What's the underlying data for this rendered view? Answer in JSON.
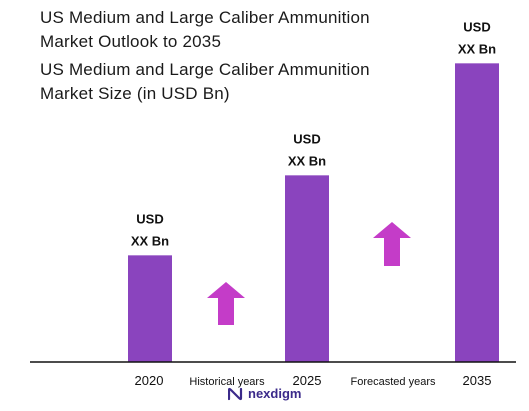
{
  "header": {
    "title_line1": "US Medium and Large Caliber Ammunition",
    "title_line2": "Market Outlook to 2035",
    "subtitle_line1": "US Medium and Large Caliber Ammunition",
    "subtitle_line2": "Market Size (in USD Bn)"
  },
  "chart_data": {
    "type": "bar",
    "categories": [
      "2020",
      "2025",
      "2035"
    ],
    "values": [
      1.0,
      1.75,
      2.8
    ],
    "value_labels": [
      [
        "USD",
        "XX Bn"
      ],
      [
        "USD",
        "XX Bn"
      ],
      [
        "USD",
        "XX Bn"
      ]
    ],
    "bar_color": "#8a44be",
    "arrow_color": "#c43cc8",
    "period_labels": [
      "Historical years",
      "Forecasted years"
    ],
    "ylim": [
      0,
      3.0
    ],
    "grid": false,
    "legend": "none"
  },
  "branding": {
    "logo_text": "nexdigm",
    "logo_icon": "nexdigm-logo-icon",
    "logo_color": "#3b2a8a"
  }
}
